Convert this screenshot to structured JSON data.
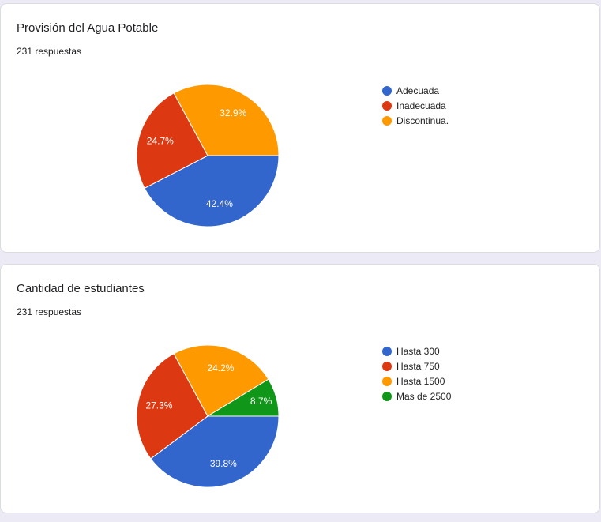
{
  "chart_data": [
    {
      "type": "pie",
      "title": "Provisión del Agua Potable",
      "responses": "231 respuestas",
      "categories": [
        "Adecuada",
        "Inadecuada",
        "Discontinua."
      ],
      "values": [
        42.4,
        24.7,
        32.9
      ],
      "labels": [
        "42.4%",
        "24.7%",
        "32.9%"
      ],
      "colors": [
        "#3366cc",
        "#dc3912",
        "#ff9900"
      ],
      "legend": "right"
    },
    {
      "type": "pie",
      "title": "Cantidad de estudiantes",
      "responses": "231 respuestas",
      "categories": [
        "Hasta 300",
        "Hasta 750",
        "Hasta 1500",
        "Mas de 2500"
      ],
      "values": [
        39.8,
        27.3,
        24.2,
        8.7
      ],
      "labels": [
        "39.8%",
        "27.3%",
        "24.2%",
        "8.7%"
      ],
      "colors": [
        "#3366cc",
        "#dc3912",
        "#ff9900",
        "#109618"
      ],
      "legend": "right"
    }
  ]
}
